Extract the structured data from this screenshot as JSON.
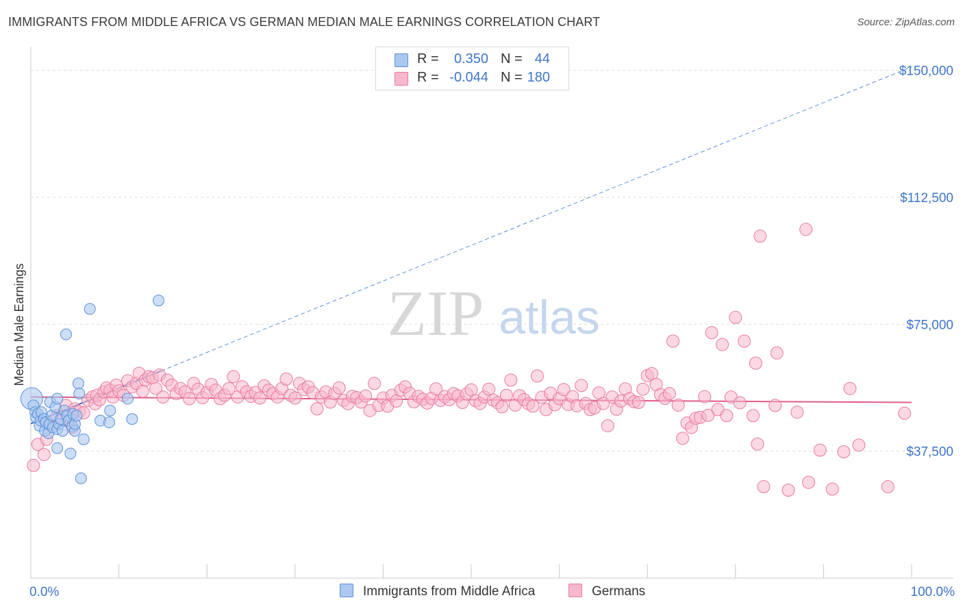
{
  "title": "IMMIGRANTS FROM MIDDLE AFRICA VS GERMAN MEDIAN MALE EARNINGS CORRELATION CHART",
  "source": "Source: ZipAtlas.com",
  "watermark": {
    "zip": "ZIP",
    "atlas": "atlas"
  },
  "colors": {
    "blue_fill": "#aac8f0",
    "blue_stroke": "#5b8fd6",
    "blue_line": "#3b6fc4",
    "pink_fill": "#f7b8cc",
    "pink_stroke": "#e8799e",
    "pink_line": "#e05a89",
    "axis_text": "#3d74c9",
    "grid": "#dcdcdc"
  },
  "legend": {
    "rows": [
      {
        "r_label": "R =",
        "r_value": "0.350",
        "n_label": "N =",
        "n_value": "44",
        "color": "#aac8f0",
        "stroke": "#5b8fd6"
      },
      {
        "r_label": "R =",
        "r_value": "-0.044",
        "n_label": "N =",
        "n_value": "180",
        "color": "#f7b8cc",
        "stroke": "#e8799e"
      }
    ]
  },
  "bottom_legend": [
    {
      "label": "Immigrants from Middle Africa",
      "color": "#aac8f0",
      "stroke": "#5b8fd6"
    },
    {
      "label": "Germans",
      "color": "#f7b8cc",
      "stroke": "#e8799e"
    }
  ],
  "chart_data": {
    "type": "scatter",
    "title": "IMMIGRANTS FROM MIDDLE AFRICA VS GERMAN MEDIAN MALE EARNINGS CORRELATION CHART",
    "xlabel": "",
    "ylabel": "Median Male Earnings",
    "xlim": [
      0,
      100
    ],
    "ylim": [
      0,
      157000
    ],
    "x_tick_labels": [
      "0.0%",
      "100.0%"
    ],
    "y_ticks": [
      37500,
      75000,
      112500,
      150000
    ],
    "y_tick_labels": [
      "$37,500",
      "$75,000",
      "$112,500",
      "$150,000"
    ],
    "grid": true,
    "series": [
      {
        "name": "Immigrants from Middle Africa",
        "color": "#aac8f0",
        "trend": {
          "x": [
            0,
            100
          ],
          "y": [
            45600,
            151000
          ],
          "solid_until_x": 14.8
        },
        "points": [
          [
            0.1,
            53000,
            "L"
          ],
          [
            0.3,
            51000
          ],
          [
            0.5,
            49000
          ],
          [
            0.6,
            47500
          ],
          [
            0.8,
            48500
          ],
          [
            1.0,
            45000
          ],
          [
            1.1,
            46500
          ],
          [
            1.2,
            49000
          ],
          [
            1.5,
            47000
          ],
          [
            1.6,
            43500
          ],
          [
            1.7,
            46000
          ],
          [
            2.0,
            42800
          ],
          [
            2.1,
            45500
          ],
          [
            2.2,
            52000
          ],
          [
            2.4,
            48000
          ],
          [
            2.5,
            44500
          ],
          [
            2.8,
            50500
          ],
          [
            3.0,
            44000
          ],
          [
            3.0,
            38400
          ],
          [
            3.0,
            53000
          ],
          [
            3.2,
            45500
          ],
          [
            3.4,
            47000
          ],
          [
            3.6,
            43500
          ],
          [
            3.8,
            49500
          ],
          [
            4.0,
            72000
          ],
          [
            4.1,
            48000
          ],
          [
            4.3,
            46500
          ],
          [
            4.5,
            36800
          ],
          [
            4.7,
            44800
          ],
          [
            4.8,
            48500
          ],
          [
            5.0,
            43500
          ],
          [
            5.0,
            45500
          ],
          [
            5.2,
            48000
          ],
          [
            5.4,
            57500
          ],
          [
            5.5,
            54500
          ],
          [
            5.7,
            29500
          ],
          [
            6.0,
            41000
          ],
          [
            6.7,
            79500
          ],
          [
            7.9,
            46500
          ],
          [
            8.9,
            46000
          ],
          [
            9.0,
            49500
          ],
          [
            11.0,
            53000
          ],
          [
            11.5,
            47000
          ],
          [
            14.5,
            82000
          ]
        ]
      },
      {
        "name": "Germans",
        "color": "#f7b8cc",
        "trend": {
          "x": [
            0,
            100
          ],
          "y": [
            53500,
            51900
          ]
        },
        "points": [
          [
            0.3,
            33300
          ],
          [
            0.8,
            39500
          ],
          [
            1.5,
            36500
          ],
          [
            1.8,
            41000
          ],
          [
            2.3,
            45000
          ],
          [
            3.0,
            48000
          ],
          [
            3.5,
            46500
          ],
          [
            4.0,
            51000
          ],
          [
            4.3,
            47500
          ],
          [
            4.7,
            44500
          ],
          [
            5.0,
            50000
          ],
          [
            5.5,
            49200
          ],
          [
            6.0,
            48800
          ],
          [
            6.5,
            52500
          ],
          [
            7.0,
            53500
          ],
          [
            7.3,
            51500
          ],
          [
            7.5,
            54000
          ],
          [
            7.8,
            52700
          ],
          [
            8.3,
            55000
          ],
          [
            8.6,
            56200
          ],
          [
            9.0,
            55500
          ],
          [
            9.3,
            53500
          ],
          [
            9.7,
            57000
          ],
          [
            10.0,
            55300
          ],
          [
            10.5,
            54000
          ],
          [
            11.0,
            58300
          ],
          [
            11.5,
            56500
          ],
          [
            12.0,
            57500
          ],
          [
            12.3,
            60500
          ],
          [
            12.7,
            55200
          ],
          [
            13.0,
            58500
          ],
          [
            13.4,
            59500
          ],
          [
            13.8,
            59200
          ],
          [
            14.2,
            56000
          ],
          [
            14.6,
            60000
          ],
          [
            15.0,
            53500
          ],
          [
            15.5,
            58500
          ],
          [
            16.0,
            57000
          ],
          [
            16.5,
            54500
          ],
          [
            17.0,
            56000
          ],
          [
            17.5,
            55000
          ],
          [
            18.0,
            53000
          ],
          [
            18.5,
            57500
          ],
          [
            19.0,
            55800
          ],
          [
            19.5,
            53300
          ],
          [
            20.0,
            54800
          ],
          [
            20.5,
            57200
          ],
          [
            21.0,
            55500
          ],
          [
            21.5,
            53000
          ],
          [
            22.0,
            54000
          ],
          [
            22.5,
            56000
          ],
          [
            23.0,
            59500
          ],
          [
            23.5,
            53500
          ],
          [
            24.0,
            56500
          ],
          [
            24.5,
            55000
          ],
          [
            25.0,
            53700
          ],
          [
            25.5,
            54800
          ],
          [
            26.0,
            53200
          ],
          [
            26.5,
            56800
          ],
          [
            27.0,
            55500
          ],
          [
            27.5,
            54500
          ],
          [
            28.0,
            53500
          ],
          [
            28.5,
            56000
          ],
          [
            29.0,
            58800
          ],
          [
            29.5,
            54000
          ],
          [
            30.0,
            53200
          ],
          [
            30.5,
            57500
          ],
          [
            31.0,
            55700
          ],
          [
            31.5,
            56500
          ],
          [
            32.0,
            54800
          ],
          [
            32.5,
            50000
          ],
          [
            33.0,
            53500
          ],
          [
            33.5,
            55000
          ],
          [
            34.0,
            52000
          ],
          [
            34.5,
            54500
          ],
          [
            35.0,
            56200
          ],
          [
            35.5,
            52500
          ],
          [
            36.0,
            51500
          ],
          [
            36.5,
            53700
          ],
          [
            37.0,
            53300
          ],
          [
            37.5,
            52000
          ],
          [
            38.0,
            53800
          ],
          [
            38.5,
            49500
          ],
          [
            39.0,
            57500
          ],
          [
            39.5,
            51000
          ],
          [
            40.0,
            53200
          ],
          [
            40.5,
            50800
          ],
          [
            41.0,
            54000
          ],
          [
            41.5,
            52300
          ],
          [
            42.0,
            55500
          ],
          [
            42.5,
            56500
          ],
          [
            43.0,
            54600
          ],
          [
            43.5,
            52100
          ],
          [
            44.0,
            53700
          ],
          [
            44.5,
            52800
          ],
          [
            45.0,
            51700
          ],
          [
            45.5,
            53100
          ],
          [
            46.0,
            55900
          ],
          [
            46.5,
            52500
          ],
          [
            47.0,
            53600
          ],
          [
            47.5,
            52700
          ],
          [
            48.0,
            54500
          ],
          [
            48.5,
            53800
          ],
          [
            49.0,
            51900
          ],
          [
            49.5,
            54400
          ],
          [
            50.0,
            55600
          ],
          [
            50.5,
            52400
          ],
          [
            51.0,
            51600
          ],
          [
            51.5,
            53500
          ],
          [
            52.0,
            55800
          ],
          [
            52.5,
            52600
          ],
          [
            53.0,
            51800
          ],
          [
            53.5,
            50600
          ],
          [
            54.0,
            54000
          ],
          [
            54.5,
            58500
          ],
          [
            55.0,
            51100
          ],
          [
            55.5,
            53900
          ],
          [
            56.0,
            52700
          ],
          [
            56.5,
            51500
          ],
          [
            57.0,
            50800
          ],
          [
            57.5,
            59700
          ],
          [
            58.0,
            53400
          ],
          [
            58.5,
            49800
          ],
          [
            59.0,
            54600
          ],
          [
            59.5,
            51200
          ],
          [
            60.0,
            53000
          ],
          [
            60.5,
            55700
          ],
          [
            61.0,
            51300
          ],
          [
            61.5,
            53600
          ],
          [
            62.0,
            50900
          ],
          [
            62.5,
            56900
          ],
          [
            63.0,
            51600
          ],
          [
            63.5,
            49800
          ],
          [
            64.0,
            50300
          ],
          [
            64.5,
            54700
          ],
          [
            65.0,
            51600
          ],
          [
            65.5,
            45000
          ],
          [
            66.0,
            53500
          ],
          [
            66.5,
            49900
          ],
          [
            67.0,
            52300
          ],
          [
            67.5,
            55900
          ],
          [
            68.0,
            53000
          ],
          [
            68.5,
            52100
          ],
          [
            69.0,
            51900
          ],
          [
            69.5,
            55800
          ],
          [
            70.0,
            59800
          ],
          [
            70.5,
            60400
          ],
          [
            71.0,
            57200
          ],
          [
            71.5,
            54200
          ],
          [
            72.0,
            53100
          ],
          [
            72.5,
            54500
          ],
          [
            72.9,
            70000
          ],
          [
            73.5,
            51100
          ],
          [
            74.0,
            41300
          ],
          [
            74.5,
            45800
          ],
          [
            75.0,
            44500
          ],
          [
            75.5,
            47200
          ],
          [
            76.0,
            47500
          ],
          [
            76.5,
            53600
          ],
          [
            76.9,
            48100
          ],
          [
            77.3,
            72500
          ],
          [
            78.0,
            49800
          ],
          [
            78.5,
            69000
          ],
          [
            79.0,
            48000
          ],
          [
            79.5,
            53500
          ],
          [
            80.0,
            77000
          ],
          [
            80.5,
            51800
          ],
          [
            81.0,
            70000
          ],
          [
            82.0,
            48000
          ],
          [
            82.3,
            63500
          ],
          [
            82.5,
            39600
          ],
          [
            82.8,
            101000
          ],
          [
            83.2,
            27000
          ],
          [
            84.5,
            51000
          ],
          [
            84.7,
            66500
          ],
          [
            86.0,
            26000
          ],
          [
            87.0,
            49000
          ],
          [
            88.0,
            103000
          ],
          [
            88.3,
            28300
          ],
          [
            89.6,
            37800
          ],
          [
            91.0,
            26300
          ],
          [
            92.3,
            37300
          ],
          [
            93.0,
            56000
          ],
          [
            94.0,
            39300
          ],
          [
            97.3,
            27000
          ],
          [
            99.2,
            48700
          ]
        ]
      }
    ]
  }
}
